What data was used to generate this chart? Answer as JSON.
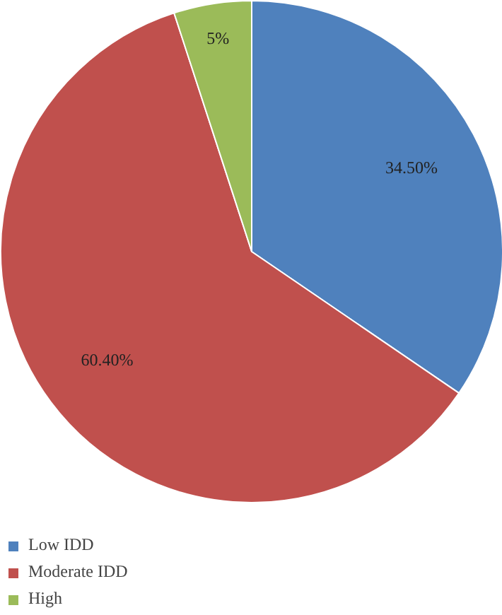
{
  "chart_data": {
    "type": "pie",
    "categories": [
      "Low IDD",
      "Moderate IDD",
      "High"
    ],
    "values": [
      34.5,
      60.4,
      5
    ],
    "colors": [
      "#4f81bd",
      "#c0504d",
      "#9bbb59"
    ],
    "value_labels": [
      "34.50%",
      "60.40%",
      "5%"
    ],
    "legend": "bottom left"
  }
}
